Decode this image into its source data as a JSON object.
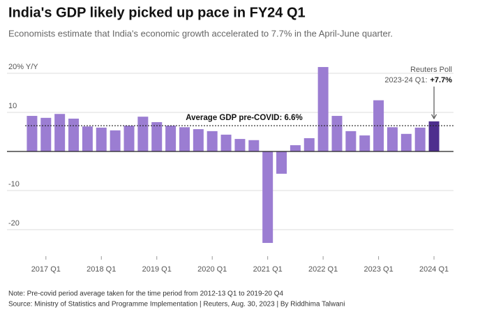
{
  "chart_data": {
    "type": "bar",
    "title": "India's GDP likely picked up pace in FY24 Q1",
    "subtitle": "Economists estimate that India's economic growth accelerated to 7.7% in the April-June quarter.",
    "categories": [
      null,
      "2017 Q1",
      null,
      null,
      null,
      "2018 Q1",
      null,
      null,
      null,
      "2019 Q1",
      null,
      null,
      null,
      "2020 Q1",
      null,
      null,
      null,
      "2021 Q1",
      null,
      null,
      null,
      "2022 Q1",
      null,
      null,
      null,
      "2023 Q1",
      null,
      null,
      null,
      "2024 Q1"
    ],
    "values": [
      9.1,
      8.6,
      9.6,
      8.4,
      6.4,
      6.1,
      5.4,
      6.6,
      8.9,
      7.5,
      6.6,
      6.2,
      5.7,
      5.2,
      4.3,
      3.2,
      2.9,
      -23.4,
      -5.7,
      1.6,
      3.4,
      21.6,
      9.1,
      5.2,
      4.1,
      13.1,
      6.2,
      4.5,
      6.1,
      7.7
    ],
    "color": "#9b7dd2",
    "highlight_color": "#4e2f8e",
    "ylim": [
      -25,
      23
    ],
    "yticks": [
      {
        "value": 20,
        "label": "20% Y/Y"
      },
      10,
      -10,
      -20
    ],
    "grid": true,
    "reference_line": {
      "value": 6.6,
      "label": "Average GDP pre-COVID: 6.6%"
    },
    "annotation": {
      "title": "Reuters Poll",
      "label": "2023-24 Q1:",
      "value": "+7.7%"
    },
    "notes": [
      "Note: Pre-covid period average taken for the time period from 2012-13 Q1 to 2019-20 Q4",
      "Source: Ministry of Statistics and Programme Implementation | Reuters, Aug. 30, 2023 | By Riddhima Talwani"
    ]
  }
}
